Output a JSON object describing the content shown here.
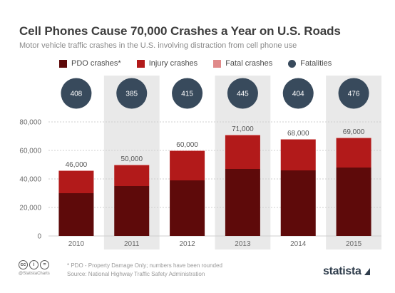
{
  "header": {
    "title": "Cell Phones Cause 70,000 Crashes a Year on U.S. Roads",
    "subtitle": "Motor vehicle traffic crashes in the U.S. involving distraction from cell phone use"
  },
  "legend": {
    "items": [
      {
        "label": "PDO crashes*",
        "color": "#5e0a0a",
        "shape": "square"
      },
      {
        "label": "Injury crashes",
        "color": "#b21a1a",
        "shape": "square"
      },
      {
        "label": "Fatal crashes",
        "color": "#e08a8a",
        "shape": "square"
      },
      {
        "label": "Fatalities",
        "color": "#384a5c",
        "shape": "circle"
      }
    ]
  },
  "chart_data": {
    "type": "bar",
    "stacked": true,
    "categories": [
      "2010",
      "2011",
      "2012",
      "2013",
      "2014",
      "2015"
    ],
    "series": [
      {
        "name": "PDO crashes*",
        "color": "#5e0a0a",
        "values": [
          30000,
          35000,
          39000,
          47000,
          46000,
          48000
        ]
      },
      {
        "name": "Injury crashes",
        "color": "#b21a1a",
        "values": [
          15600,
          14600,
          20500,
          23500,
          21600,
          20600
        ]
      },
      {
        "name": "Fatal crashes",
        "color": "#e08a8a",
        "values": [
          400,
          400,
          500,
          500,
          400,
          400
        ]
      }
    ],
    "totals": [
      "46,000",
      "50,000",
      "60,000",
      "71,000",
      "68,000",
      "69,000"
    ],
    "fatalities": [
      "408",
      "385",
      "415",
      "445",
      "404",
      "476"
    ],
    "yticks": [
      "0",
      "20,000",
      "40,000",
      "60,000",
      "80,000"
    ],
    "ylim": [
      0,
      80000
    ],
    "grid": true,
    "shaded_columns": [
      1,
      3,
      5
    ],
    "colors": {
      "fatalities_circle": "#384a5c",
      "shade": "#e9e9e9",
      "grid": "#cfcfcf",
      "axis_text": "#6a6a6a"
    }
  },
  "footer": {
    "note": "* PDO - Property Damage Only; numbers have been rounded",
    "source": "Source: National Highway Traffic Safety Administration",
    "handle": "@StatistaCharts",
    "brand": "statista"
  }
}
